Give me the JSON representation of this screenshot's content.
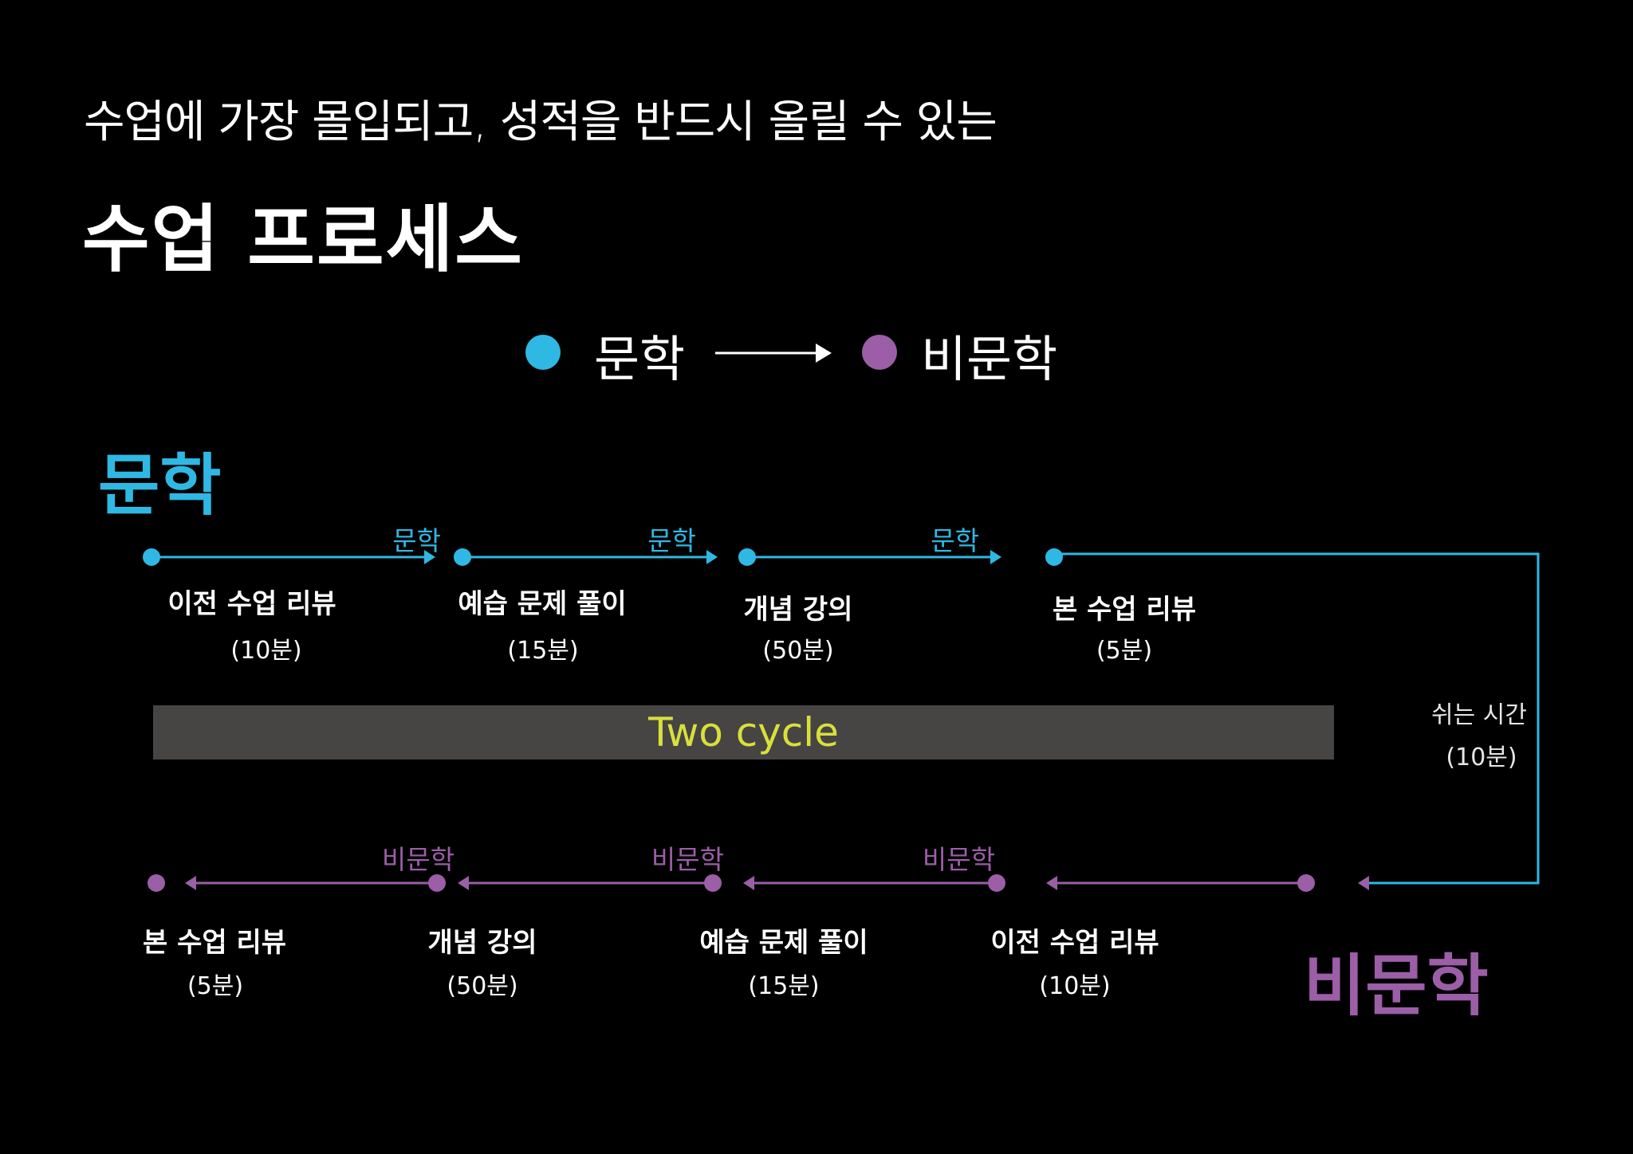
{
  "header": {
    "subtitle": "수업에 가장 몰입되고, 성적을 반드시 올릴 수 있는",
    "title": "수업 프로세스"
  },
  "legend": {
    "from_label": "문학",
    "to_label": "비문학",
    "arrow_icon": "arrow-right-icon"
  },
  "colors": {
    "literature": "#2fb8e4",
    "nonliterature": "#9b5ea7",
    "cycle_bar": "#474444",
    "cycle_text": "#d8e03a",
    "background": "#000000"
  },
  "literature": {
    "heading": "문학",
    "segment_label": "문학",
    "steps": [
      {
        "title": "이전 수업 리뷰",
        "duration": "(10분)"
      },
      {
        "title": "예습 문제 풀이",
        "duration": "(15분)"
      },
      {
        "title": "개념 강의",
        "duration": "(50분)"
      },
      {
        "title": "본 수업 리뷰",
        "duration": "(5분)"
      }
    ]
  },
  "cycle": {
    "label": "Two cycle"
  },
  "break": {
    "title": "쉬는 시간",
    "duration": "(10분)"
  },
  "nonliterature": {
    "heading": "비문학",
    "segment_label": "비문학",
    "steps": [
      {
        "title": "본 수업 리뷰",
        "duration": "(5분)"
      },
      {
        "title": "개념 강의",
        "duration": "(50분)"
      },
      {
        "title": "예습 문제 풀이",
        "duration": "(15분)"
      },
      {
        "title": "이전 수업 리뷰",
        "duration": "(10분)"
      }
    ]
  }
}
